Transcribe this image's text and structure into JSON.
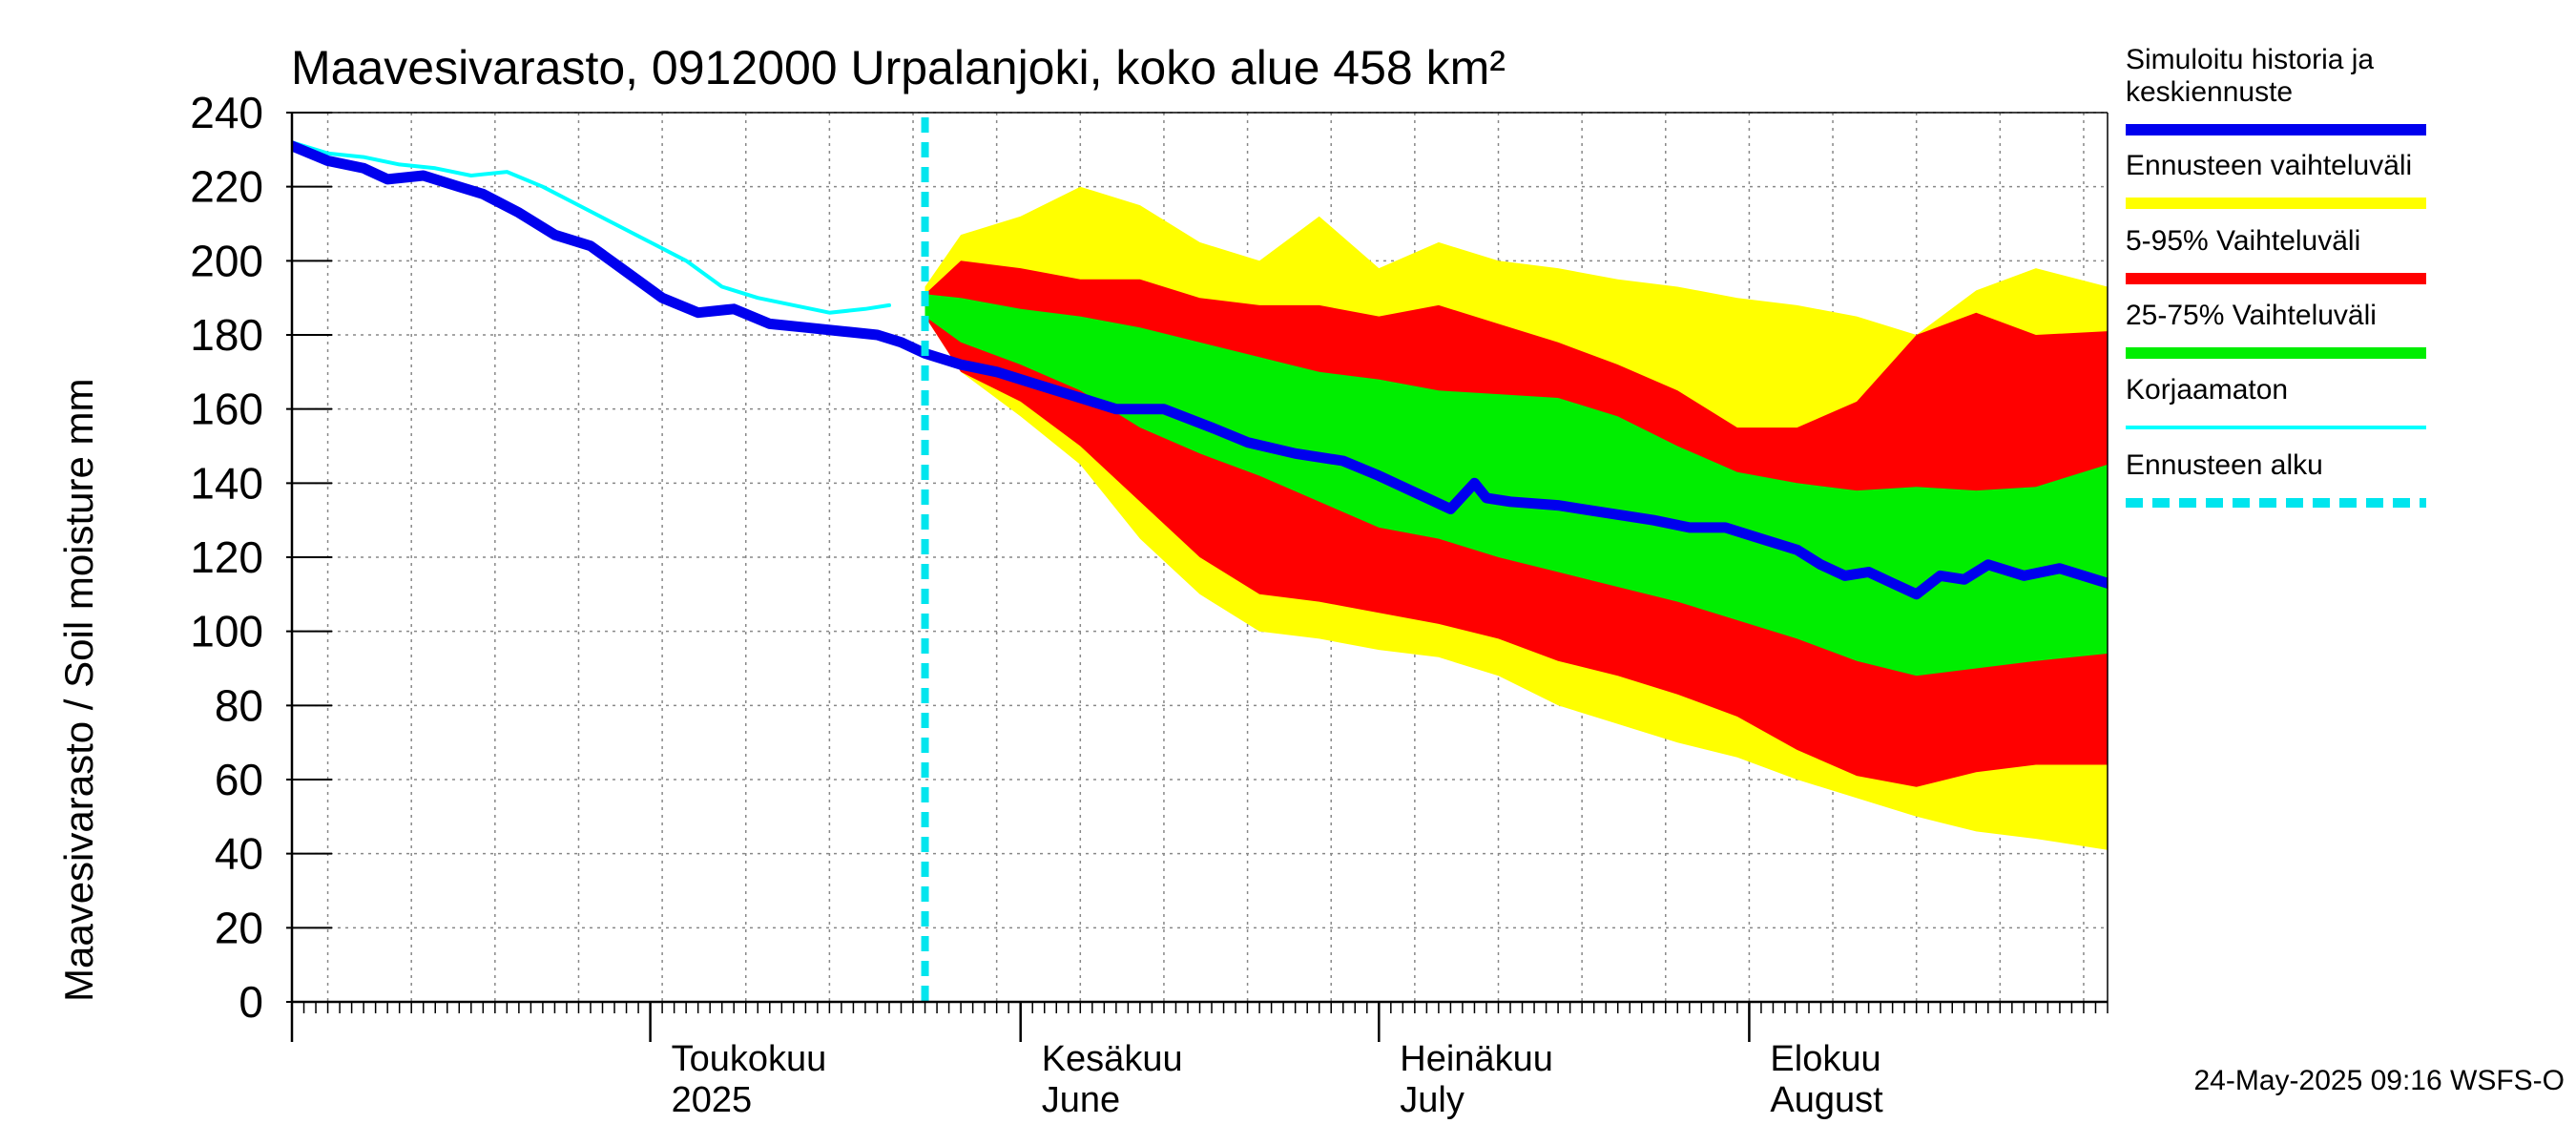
{
  "chart_data": {
    "type": "area",
    "title": "Maavesivarasto, 0912000 Urpalanjoki, koko alue 458 km²",
    "ylabel": "Maavesivarasto / Soil moisture   mm",
    "ylim": [
      0,
      240
    ],
    "yticks": [
      "0",
      "20",
      "40",
      "60",
      "80",
      "100",
      "120",
      "140",
      "160",
      "180",
      "200",
      "220",
      "240"
    ],
    "xrange": [
      "2025-04-01",
      "2025-08-31"
    ],
    "forecast_start": "2025-05-24",
    "month_labels": [
      {
        "date": "2025-05-01",
        "line1": "Toukokuu",
        "line2": "2025"
      },
      {
        "date": "2025-06-01",
        "line1": "Kesäkuu",
        "line2": "June"
      },
      {
        "date": "2025-07-01",
        "line1": "Heinäkuu",
        "line2": "July"
      },
      {
        "date": "2025-08-01",
        "line1": "Elokuu",
        "line2": "August"
      }
    ],
    "grid": true,
    "legend_position": "right",
    "legend": [
      {
        "label": "Simuloitu historia ja keskiennuste",
        "color": "#0000ee",
        "style": "thick"
      },
      {
        "label": "Ennusteen vaihteluväli",
        "color": "#ffff00",
        "style": "thick"
      },
      {
        "label": "5-95% Vaihteluväli",
        "color": "#ff0000",
        "style": "thick"
      },
      {
        "label": "25-75% Vaihteluväli",
        "color": "#00ee00",
        "style": "thick"
      },
      {
        "label": "Korjaamaton",
        "color": "#00ffff",
        "style": "thin"
      },
      {
        "label": "Ennusteen alku",
        "color": "#00e5ee",
        "style": "dashed"
      }
    ],
    "series": [
      {
        "name": "Simuloitu historia ja keskiennuste",
        "color": "#0000ee",
        "x": [
          "2025-04-01",
          "2025-04-04",
          "2025-04-07",
          "2025-04-09",
          "2025-04-12",
          "2025-04-15",
          "2025-04-17",
          "2025-04-20",
          "2025-04-23",
          "2025-04-26",
          "2025-04-29",
          "2025-05-02",
          "2025-05-05",
          "2025-05-08",
          "2025-05-11",
          "2025-05-14",
          "2025-05-17",
          "2025-05-20",
          "2025-05-22",
          "2025-05-24",
          "2025-05-27",
          "2025-05-30",
          "2025-06-02",
          "2025-06-05",
          "2025-06-09",
          "2025-06-13",
          "2025-06-17",
          "2025-06-20",
          "2025-06-24",
          "2025-06-28",
          "2025-07-01",
          "2025-07-05",
          "2025-07-07",
          "2025-07-09",
          "2025-07-10",
          "2025-07-12",
          "2025-07-16",
          "2025-07-20",
          "2025-07-24",
          "2025-07-27",
          "2025-07-30",
          "2025-08-02",
          "2025-08-05",
          "2025-08-07",
          "2025-08-09",
          "2025-08-11",
          "2025-08-13",
          "2025-08-15",
          "2025-08-17",
          "2025-08-19",
          "2025-08-21",
          "2025-08-24",
          "2025-08-27",
          "2025-08-31"
        ],
        "values": [
          231,
          227,
          225,
          222,
          223,
          220,
          218,
          213,
          207,
          204,
          197,
          190,
          186,
          187,
          183,
          182,
          181,
          180,
          178,
          175,
          172,
          170,
          167,
          164,
          160,
          160,
          155,
          151,
          148,
          146,
          142,
          136,
          133,
          140,
          136,
          135,
          134,
          132,
          130,
          128,
          128,
          125,
          122,
          118,
          115,
          116,
          113,
          110,
          115,
          114,
          118,
          115,
          117,
          113
        ]
      },
      {
        "name": "Korjaamaton",
        "color": "#00ffff",
        "x": [
          "2025-04-01",
          "2025-04-04",
          "2025-04-07",
          "2025-04-10",
          "2025-04-13",
          "2025-04-16",
          "2025-04-19",
          "2025-04-22",
          "2025-04-25",
          "2025-04-28",
          "2025-05-01",
          "2025-05-04",
          "2025-05-07",
          "2025-05-10",
          "2025-05-13",
          "2025-05-16",
          "2025-05-19",
          "2025-05-21"
        ],
        "values": [
          232,
          229,
          228,
          226,
          225,
          223,
          224,
          220,
          215,
          210,
          205,
          200,
          193,
          190,
          188,
          186,
          187,
          188
        ]
      },
      {
        "name": "Ennusteen vaihteluväli",
        "color": "#ffff00",
        "x": [
          "2025-05-24",
          "2025-05-27",
          "2025-06-01",
          "2025-06-06",
          "2025-06-11",
          "2025-06-16",
          "2025-06-21",
          "2025-06-26",
          "2025-07-01",
          "2025-07-06",
          "2025-07-11",
          "2025-07-16",
          "2025-07-21",
          "2025-07-26",
          "2025-07-31",
          "2025-08-05",
          "2025-08-10",
          "2025-08-15",
          "2025-08-20",
          "2025-08-25",
          "2025-08-31"
        ],
        "upper": [
          193,
          207,
          212,
          220,
          215,
          205,
          200,
          212,
          198,
          205,
          200,
          198,
          195,
          193,
          190,
          188,
          185,
          180,
          192,
          198,
          193
        ],
        "lower": [
          185,
          170,
          158,
          145,
          125,
          110,
          100,
          98,
          95,
          93,
          88,
          80,
          75,
          70,
          66,
          60,
          55,
          50,
          46,
          44,
          41
        ]
      },
      {
        "name": "5-95% Vaihteluväli",
        "color": "#ff0000",
        "x": [
          "2025-05-24",
          "2025-05-27",
          "2025-06-01",
          "2025-06-06",
          "2025-06-11",
          "2025-06-16",
          "2025-06-21",
          "2025-06-26",
          "2025-07-01",
          "2025-07-06",
          "2025-07-11",
          "2025-07-16",
          "2025-07-21",
          "2025-07-26",
          "2025-07-31",
          "2025-08-05",
          "2025-08-10",
          "2025-08-15",
          "2025-08-20",
          "2025-08-25",
          "2025-08-31"
        ],
        "upper": [
          191,
          200,
          198,
          195,
          195,
          190,
          188,
          188,
          185,
          188,
          183,
          178,
          172,
          165,
          155,
          155,
          162,
          180,
          186,
          180,
          181
        ],
        "lower": [
          185,
          170,
          162,
          150,
          135,
          120,
          110,
          108,
          105,
          102,
          98,
          92,
          88,
          83,
          77,
          68,
          61,
          58,
          62,
          64,
          64
        ]
      },
      {
        "name": "25-75% Vaihteluväli",
        "color": "#00ee00",
        "x": [
          "2025-05-24",
          "2025-05-27",
          "2025-06-01",
          "2025-06-06",
          "2025-06-11",
          "2025-06-16",
          "2025-06-21",
          "2025-06-26",
          "2025-07-01",
          "2025-07-06",
          "2025-07-11",
          "2025-07-16",
          "2025-07-21",
          "2025-07-26",
          "2025-07-31",
          "2025-08-05",
          "2025-08-10",
          "2025-08-15",
          "2025-08-20",
          "2025-08-25",
          "2025-08-31"
        ],
        "upper": [
          191,
          190,
          187,
          185,
          182,
          178,
          174,
          170,
          168,
          165,
          164,
          163,
          158,
          150,
          143,
          140,
          138,
          139,
          138,
          139,
          145
        ],
        "lower": [
          185,
          178,
          172,
          165,
          155,
          148,
          142,
          135,
          128,
          125,
          120,
          116,
          112,
          108,
          103,
          98,
          92,
          88,
          90,
          92,
          94
        ]
      }
    ],
    "timestamp": "24-May-2025 09:16 WSFS-O"
  }
}
